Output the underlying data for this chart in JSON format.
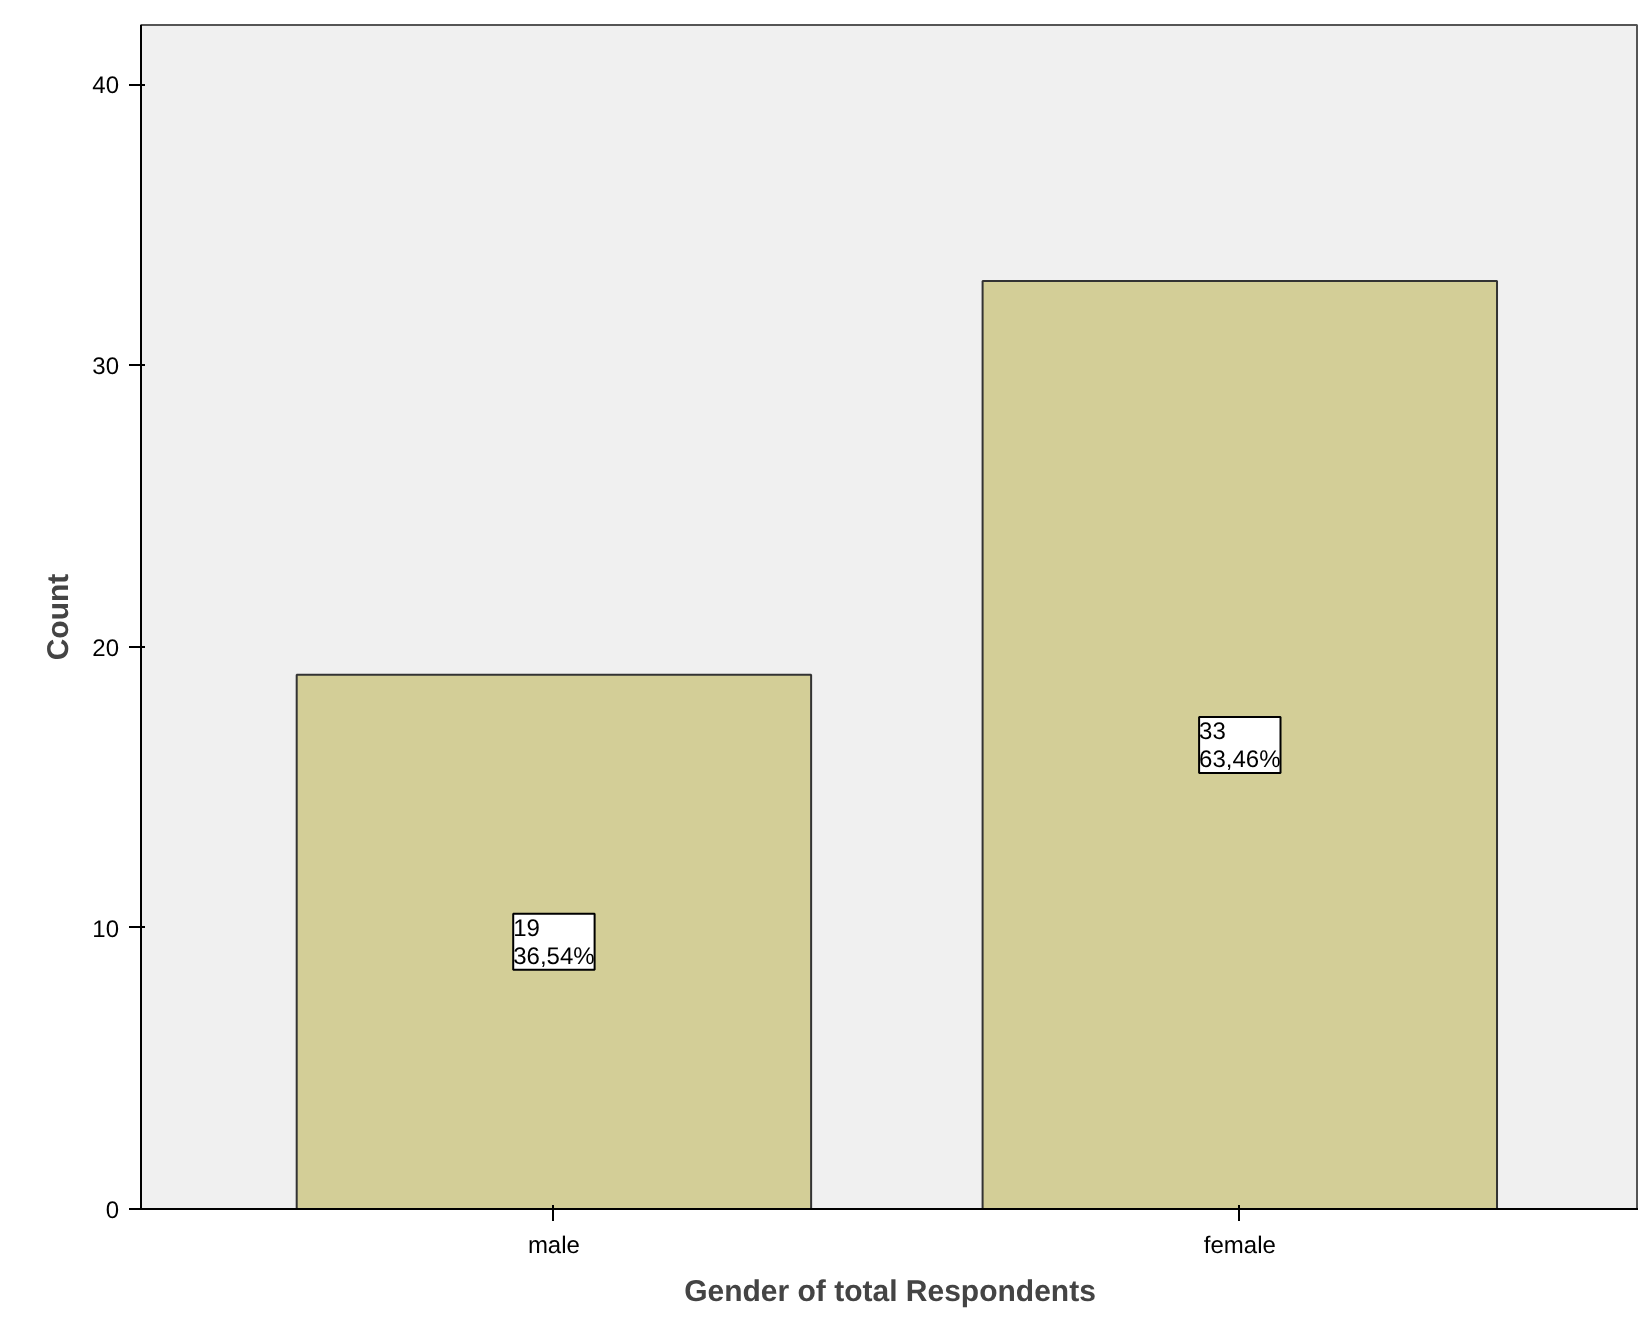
{
  "chart_data": {
    "type": "bar",
    "xlabel": "Gender of total Respondents",
    "ylabel": "Count",
    "categories": [
      "male",
      "female"
    ],
    "values": [
      19,
      33
    ],
    "color": "#d3ce97",
    "value_labels": [
      "19\n36,54%",
      "33\n63,46%"
    ],
    "ylim": [
      0,
      42.1
    ],
    "yticks": [
      0,
      10,
      20,
      30,
      40
    ],
    "grid": false
  }
}
